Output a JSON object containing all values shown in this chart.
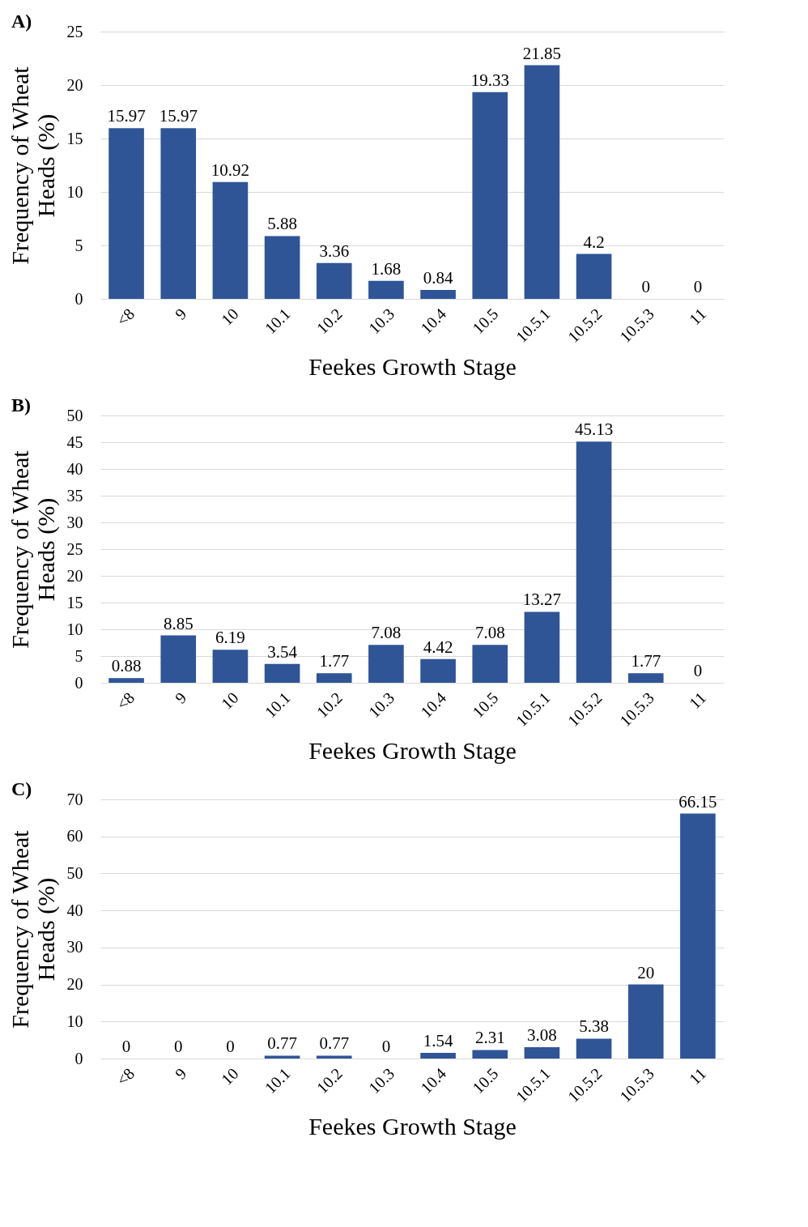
{
  "chart_data": [
    {
      "type": "bar",
      "title": "A)",
      "xlabel": "Feekes Growth Stage",
      "ylabel": "Frequency of Wheat Heads (%)",
      "categories": [
        "<8",
        "9",
        "10",
        "10.1",
        "10.2",
        "10.3",
        "10.4",
        "10.5",
        "10.5.1",
        "10.5.2",
        "10.5.3",
        "11"
      ],
      "values": [
        15.97,
        15.97,
        10.92,
        5.88,
        3.36,
        1.68,
        0.84,
        19.33,
        21.85,
        4.2,
        0,
        0
      ],
      "color": "#2f5597",
      "ylim": [
        0,
        25
      ],
      "yticks": [
        0,
        5,
        10,
        15,
        20,
        25
      ],
      "grid": "y",
      "data_labels": true
    },
    {
      "type": "bar",
      "title": "B)",
      "xlabel": "Feekes Growth Stage",
      "ylabel": "Frequency of Wheat Heads (%)",
      "categories": [
        "<8",
        "9",
        "10",
        "10.1",
        "10.2",
        "10.3",
        "10.4",
        "10.5",
        "10.5.1",
        "10.5.2",
        "10.5.3",
        "11"
      ],
      "values": [
        0.88,
        8.85,
        6.19,
        3.54,
        1.77,
        7.08,
        4.42,
        7.08,
        13.27,
        45.13,
        1.77,
        0
      ],
      "color": "#2f5597",
      "ylim": [
        0,
        50
      ],
      "yticks": [
        0,
        5,
        10,
        15,
        20,
        25,
        30,
        35,
        40,
        45,
        50
      ],
      "grid": "y",
      "data_labels": true
    },
    {
      "type": "bar",
      "title": "C)",
      "xlabel": "Feekes Growth Stage",
      "ylabel": "Frequency of Wheat Heads (%)",
      "categories": [
        "<8",
        "9",
        "10",
        "10.1",
        "10.2",
        "10.3",
        "10.4",
        "10.5",
        "10.5.1",
        "10.5.2",
        "10.5.3",
        "11"
      ],
      "values": [
        0,
        0,
        0,
        0.77,
        0.77,
        0,
        1.54,
        2.31,
        3.08,
        5.38,
        20,
        66.15
      ],
      "color": "#2f5597",
      "ylim": [
        0,
        70
      ],
      "yticks": [
        0,
        10,
        20,
        30,
        40,
        50,
        60,
        70
      ],
      "grid": "y",
      "data_labels": true
    }
  ]
}
